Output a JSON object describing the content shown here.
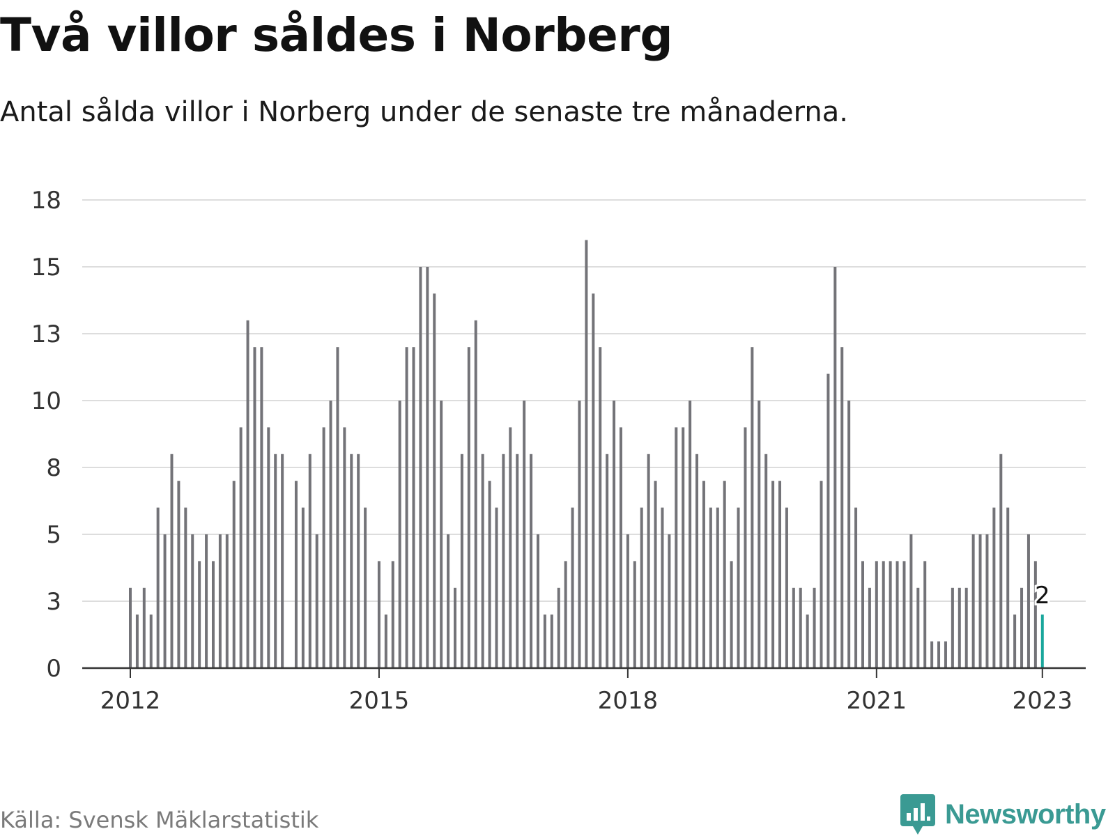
{
  "header": {
    "title": "Två villor såldes i Norberg",
    "subtitle": "Antal sålda villor i Norberg under de senaste tre månaderna."
  },
  "footer": {
    "source": "Källa: Svensk Mäklarstatistik",
    "brand": "Newsworthy"
  },
  "colors": {
    "bar": "#737378",
    "highlight": "#1aa79c",
    "grid": "#dddddd",
    "axis": "#333333",
    "brand": "#3a9a93"
  },
  "chart_data": {
    "type": "bar",
    "title": "Två villor såldes i Norberg",
    "subtitle": "Antal sålda villor i Norberg under de senaste tre månaderna.",
    "xlabel": "",
    "ylabel": "",
    "x_ticks": [
      "2012",
      "2015",
      "2018",
      "2021",
      "2023"
    ],
    "y_ticks": [
      "0",
      "3",
      "5",
      "8",
      "10",
      "13",
      "15",
      "18"
    ],
    "ylim": [
      0,
      17.5
    ],
    "grid": true,
    "start_period": "2012-01",
    "end_period": "2023-01",
    "values": [
      3,
      2,
      3,
      2,
      6,
      5,
      8,
      7,
      6,
      5,
      4,
      5,
      4,
      5,
      5,
      7,
      9,
      13,
      12,
      12,
      9,
      8,
      8,
      0,
      7,
      6,
      8,
      5,
      9,
      10,
      12,
      9,
      8,
      8,
      6,
      0,
      4,
      2,
      4,
      10,
      12,
      12,
      15,
      15,
      14,
      10,
      5,
      3,
      8,
      12,
      13,
      8,
      7,
      6,
      8,
      9,
      8,
      10,
      8,
      5,
      2,
      2,
      3,
      4,
      6,
      10,
      16,
      14,
      12,
      8,
      10,
      9,
      5,
      4,
      6,
      8,
      7,
      6,
      5,
      9,
      9,
      10,
      8,
      7,
      6,
      6,
      7,
      4,
      6,
      9,
      12,
      10,
      8,
      7,
      7,
      6,
      3,
      3,
      2,
      3,
      7,
      11,
      15,
      12,
      10,
      6,
      4,
      3,
      4,
      4,
      4,
      4,
      4,
      5,
      3,
      4,
      1,
      1,
      1,
      3,
      3,
      3,
      5,
      5,
      5,
      6,
      8,
      6,
      2,
      3,
      5,
      4,
      2
    ],
    "highlight": {
      "label": "2",
      "value": 2,
      "period": "2023-01"
    }
  }
}
